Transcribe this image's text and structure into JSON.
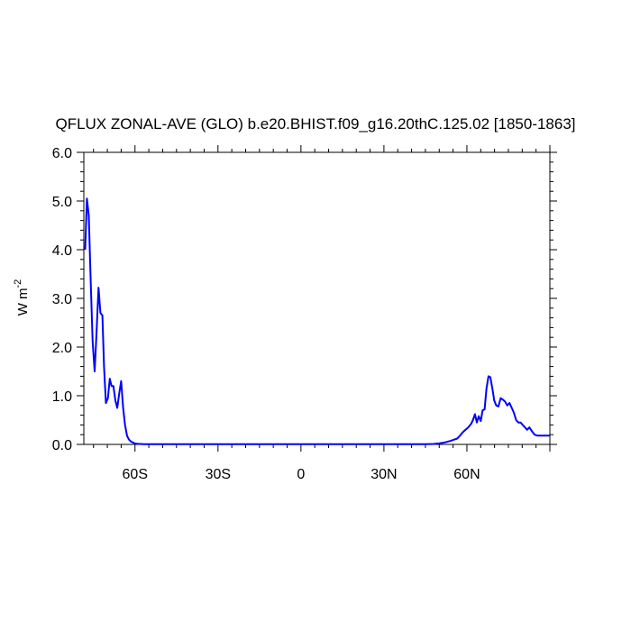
{
  "chart_data": {
    "type": "line",
    "title": "QFLUX ZONAL-AVE (GLO) b.e20.BHIST.f09_g16.20thC.125.02 [1850-1863]",
    "ylabel_base": "W m",
    "ylabel_exponent": "-2",
    "xlim": [
      -78.5,
      90
    ],
    "ylim": [
      0,
      6
    ],
    "x_ticks": [
      {
        "value": -60,
        "label": "60S"
      },
      {
        "value": -30,
        "label": "30S"
      },
      {
        "value": 0,
        "label": "0"
      },
      {
        "value": 30,
        "label": "30N"
      },
      {
        "value": 60,
        "label": "60N"
      }
    ],
    "y_ticks": [
      {
        "value": 0,
        "label": "0.0"
      },
      {
        "value": 1,
        "label": "1.0"
      },
      {
        "value": 2,
        "label": "2.0"
      },
      {
        "value": 3,
        "label": "3.0"
      },
      {
        "value": 4,
        "label": "4.0"
      },
      {
        "value": 5,
        "label": "5.0"
      },
      {
        "value": 6,
        "label": "6.0"
      }
    ],
    "line_color": "#0000ff",
    "series": [
      {
        "x": [
          -78,
          -77.4,
          -76.7,
          -76,
          -75.3,
          -74.6,
          -73.9,
          -73.2,
          -72.5,
          -71.8,
          -71.2,
          -70.5,
          -69.8,
          -69.1,
          -68.5,
          -67.8,
          -67.1,
          -66.4,
          -65.7,
          -65,
          -64.3,
          -63.6,
          -62.9,
          -62.2,
          -61.5,
          -60.8,
          -60.1,
          -59.4,
          -58.7,
          -58,
          -57,
          -56,
          -55,
          -53,
          -50,
          -45,
          -40,
          -30,
          -20,
          -10,
          0,
          10,
          20,
          30,
          40,
          45,
          48,
          50,
          52,
          54,
          55.5,
          56.5,
          57.5,
          58.5,
          59.5,
          60.5,
          61.5,
          62.2,
          62.9,
          63.6,
          64.3,
          65,
          65.7,
          66.4,
          67.1,
          67.8,
          68.5,
          69.2,
          69.9,
          70.6,
          71.4,
          72.2,
          73,
          73.8,
          74.6,
          75.4,
          76.2,
          77,
          77.8,
          78.6,
          79.4,
          80.2,
          81,
          81.8,
          82.6,
          83.4,
          84.5,
          85.5,
          87,
          88.5,
          90
        ],
        "y": [
          4.0,
          5.05,
          4.7,
          3.3,
          2.1,
          1.5,
          2.3,
          3.22,
          2.7,
          2.65,
          1.6,
          0.85,
          0.95,
          1.35,
          1.2,
          1.2,
          0.9,
          0.75,
          1.05,
          1.3,
          0.75,
          0.4,
          0.18,
          0.1,
          0.06,
          0.04,
          0.02,
          0.015,
          0.01,
          0.01,
          0.005,
          0.005,
          0.005,
          0.005,
          0.005,
          0.005,
          0.005,
          0.005,
          0.005,
          0.005,
          0.005,
          0.005,
          0.005,
          0.005,
          0.005,
          0.005,
          0.01,
          0.02,
          0.04,
          0.07,
          0.1,
          0.12,
          0.18,
          0.25,
          0.3,
          0.35,
          0.42,
          0.5,
          0.62,
          0.45,
          0.58,
          0.48,
          0.7,
          0.72,
          1.15,
          1.4,
          1.38,
          1.15,
          0.9,
          0.8,
          0.78,
          0.95,
          0.92,
          0.88,
          0.8,
          0.85,
          0.75,
          0.65,
          0.5,
          0.45,
          0.45,
          0.4,
          0.35,
          0.3,
          0.35,
          0.28,
          0.2,
          0.18,
          0.18,
          0.18,
          0.18
        ]
      }
    ]
  }
}
